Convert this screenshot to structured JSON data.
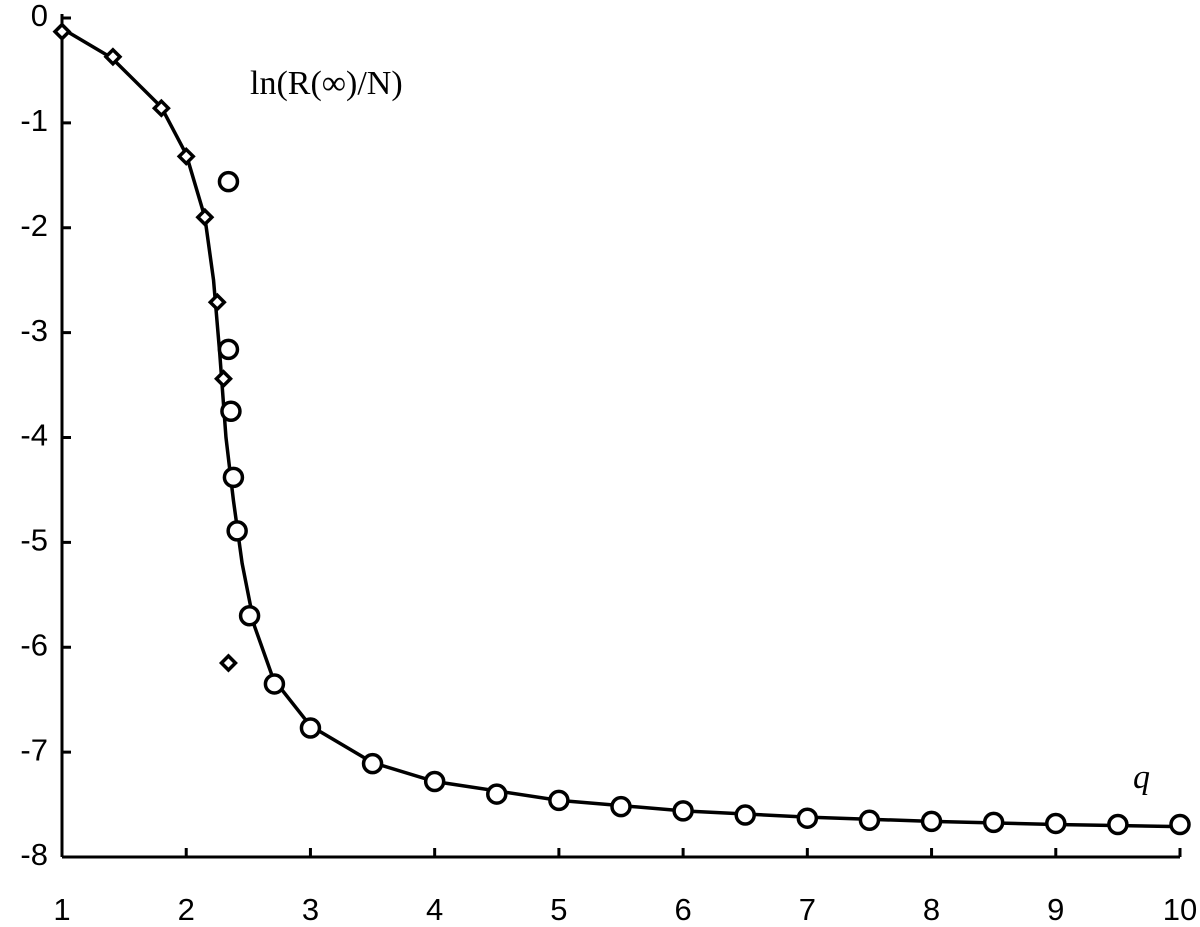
{
  "chart_data": {
    "type": "line",
    "annotations": [
      "ln(R(∞)/N)",
      "q"
    ],
    "xlim": [
      1,
      10
    ],
    "xticks": [
      1,
      2,
      3,
      4,
      5,
      6,
      7,
      8,
      9,
      10
    ],
    "ylim": [
      -8,
      0
    ],
    "yticks": [
      0,
      -1,
      -2,
      -3,
      -4,
      -5,
      -6,
      -7,
      -8
    ],
    "series": [
      {
        "marker": "none",
        "color": "#000000",
        "x": [
          1,
          1.4,
          1.8,
          2.0,
          2.15,
          2.22,
          2.27,
          2.32,
          2.38,
          2.45,
          2.55,
          2.7,
          3,
          3.5,
          4,
          5,
          6,
          7,
          8,
          9,
          10
        ],
        "values": [
          -0.1,
          -0.38,
          -0.85,
          -1.3,
          -1.9,
          -2.5,
          -3.2,
          -4.0,
          -4.6,
          -5.2,
          -5.8,
          -6.3,
          -6.75,
          -7.1,
          -7.28,
          -7.46,
          -7.56,
          -7.62,
          -7.66,
          -7.69,
          -7.71
        ]
      },
      {
        "marker": "diamond",
        "color": "#000000",
        "x": [
          1,
          1.41,
          1.8,
          2.0,
          2.15,
          2.25,
          2.3,
          2.34
        ],
        "values": [
          -0.13,
          -0.37,
          -0.86,
          -1.32,
          -1.9,
          -2.71,
          -3.44,
          -6.15
        ]
      },
      {
        "marker": "circle",
        "color": "#000000",
        "x": [
          2.34,
          2.34,
          2.36,
          2.38,
          2.41,
          2.51,
          2.71,
          3,
          3.5,
          4,
          4.5,
          5,
          5.5,
          6,
          6.5,
          7,
          7.5,
          8,
          8.5,
          9,
          9.5,
          10
        ],
        "values": [
          -1.56,
          -3.16,
          -3.75,
          -4.38,
          -4.89,
          -5.7,
          -6.35,
          -6.77,
          -7.11,
          -7.28,
          -7.4,
          -7.46,
          -7.52,
          -7.56,
          -7.6,
          -7.63,
          -7.65,
          -7.66,
          -7.67,
          -7.68,
          -7.69,
          -7.69
        ]
      }
    ]
  }
}
